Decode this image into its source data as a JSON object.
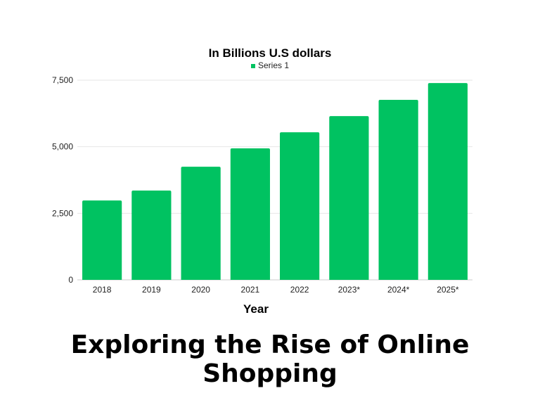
{
  "caption": "Exploring the Rise of Online Shopping",
  "colors": {
    "bar": "#00c261",
    "grid": "#e6e6e6",
    "axis_text": "#222222",
    "title_text": "#000000"
  },
  "chart_data": {
    "type": "bar",
    "title": "In Billions U.S dollars",
    "legend": {
      "entries": [
        "Series 1"
      ],
      "placement": "top-center"
    },
    "xlabel": "Year",
    "ylabel": "",
    "categories": [
      "2018",
      "2019",
      "2020",
      "2021",
      "2022",
      "2023*",
      "2024*",
      "2025*"
    ],
    "series": [
      {
        "name": "Series 1",
        "values": [
          2982,
          3354,
          4248,
          4938,
          5542,
          6151,
          6761,
          7391
        ]
      }
    ],
    "ylim": [
      0,
      7500
    ],
    "yticks": [
      0,
      2500,
      5000,
      7500
    ],
    "ytick_labels": [
      "0",
      "2,500",
      "5,000",
      "7,500"
    ],
    "grid": true
  }
}
